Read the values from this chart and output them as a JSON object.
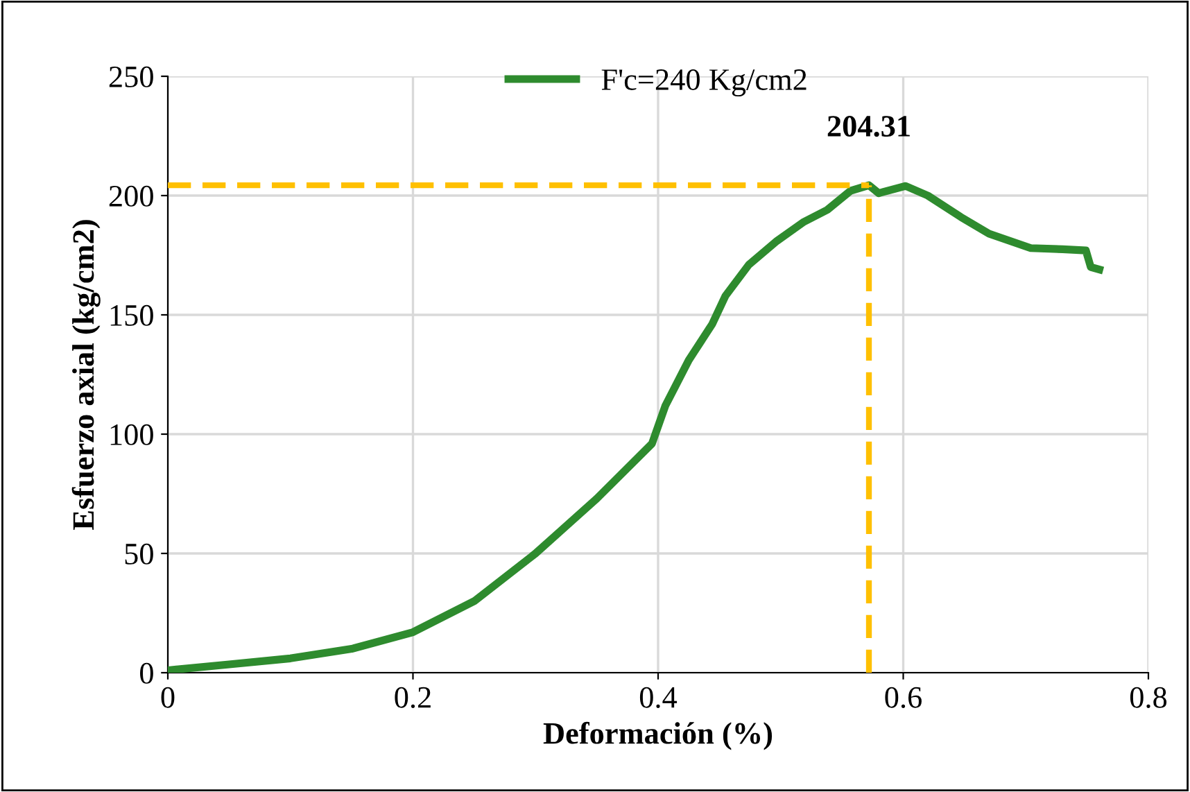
{
  "chart_data": {
    "type": "line",
    "xlabel": "Deformación (%)",
    "ylabel": "Esfuerzo axial (kg/cm2)",
    "xlim": [
      0,
      0.8
    ],
    "xticks": [
      0,
      0.2,
      0.4,
      0.6,
      0.8
    ],
    "ylim": [
      0,
      250
    ],
    "yticks": [
      0,
      50,
      100,
      150,
      200,
      250
    ],
    "grid": true,
    "legend": "top",
    "marker": "none",
    "line_style": "solid",
    "series": [
      {
        "name": "F'c=240 Kg/cm2",
        "color": "#2e8b2e",
        "x": [
          0,
          0.05,
          0.1,
          0.15,
          0.2,
          0.25,
          0.3,
          0.35,
          0.395,
          0.406,
          0.425,
          0.444,
          0.455,
          0.474,
          0.497,
          0.519,
          0.538,
          0.557,
          0.572,
          0.58,
          0.602,
          0.62,
          0.647,
          0.67,
          0.704,
          0.73,
          0.749,
          0.753,
          0.76
        ],
        "values": [
          1,
          3.5,
          6,
          10,
          17,
          30,
          50,
          73,
          96,
          112,
          131,
          146,
          158,
          171,
          181,
          189,
          194,
          202,
          204.31,
          201,
          204,
          200,
          191,
          184,
          178,
          177.5,
          177,
          170,
          169
        ]
      }
    ],
    "ref_lines": [
      {
        "axis": "y",
        "value": 204.31,
        "color": "#ffc000",
        "line_style": "dashed"
      },
      {
        "axis": "x",
        "value": 0.572,
        "color": "#ffc000",
        "line_style": "dashed"
      }
    ],
    "annotations": [
      {
        "text": "204.31",
        "x": 0.572,
        "y": 204.31
      }
    ]
  }
}
